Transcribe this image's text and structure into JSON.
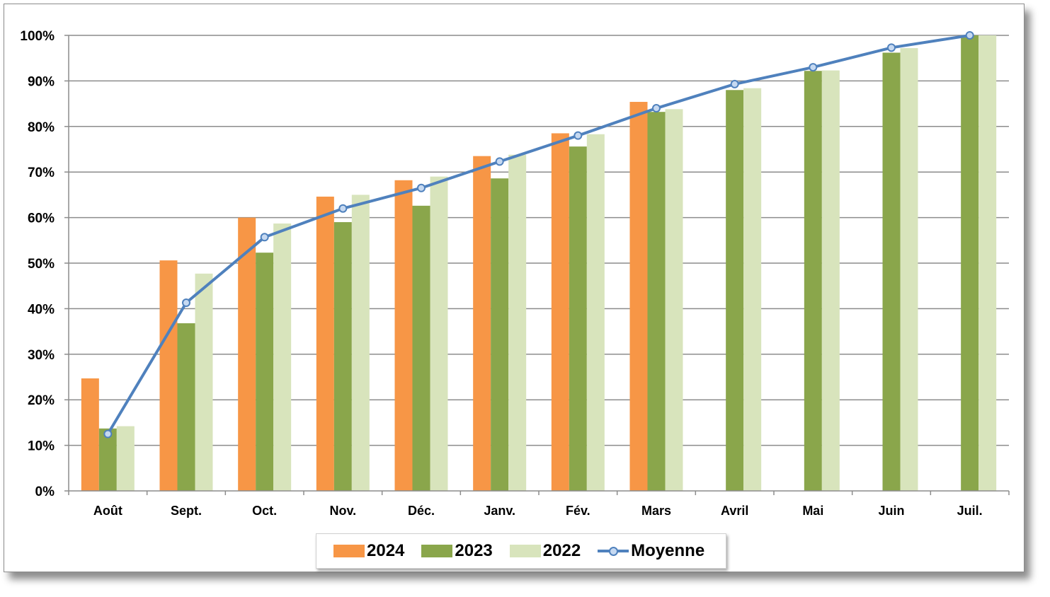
{
  "chart_data": {
    "type": "bar",
    "categories": [
      "Août",
      "Sept.",
      "Oct.",
      "Nov.",
      "Déc.",
      "Janv.",
      "Fév.",
      "Mars",
      "Avril",
      "Mai",
      "Juin",
      "Juil."
    ],
    "series": [
      {
        "name": "2024",
        "kind": "bar",
        "color": "#f79646",
        "values": [
          24.7,
          50.6,
          60.0,
          64.6,
          68.2,
          73.5,
          78.5,
          85.4,
          null,
          null,
          null,
          null
        ]
      },
      {
        "name": "2023",
        "kind": "bar",
        "color": "#8aa64b",
        "values": [
          13.7,
          36.8,
          52.3,
          59.0,
          62.6,
          68.6,
          75.6,
          83.2,
          88.0,
          92.2,
          96.2,
          100.0
        ]
      },
      {
        "name": "2022",
        "kind": "bar",
        "color": "#d8e4bc",
        "values": [
          14.2,
          47.7,
          58.7,
          65.0,
          69.0,
          73.8,
          78.3,
          83.8,
          88.4,
          92.3,
          97.2,
          100.0
        ]
      },
      {
        "name": "Moyenne",
        "kind": "line",
        "color": "#4f81bd",
        "values": [
          12.5,
          41.3,
          55.7,
          62.0,
          66.5,
          72.3,
          78.0,
          84.0,
          89.3,
          93.0,
          97.3,
          100.0
        ]
      }
    ],
    "yticks": [
      "0%",
      "10%",
      "20%",
      "30%",
      "40%",
      "50%",
      "60%",
      "70%",
      "80%",
      "90%",
      "100%"
    ],
    "ylim": [
      0,
      100
    ],
    "grid": true,
    "legend_position": "bottom",
    "title": "",
    "xlabel": "",
    "ylabel": ""
  },
  "legend": {
    "items": [
      {
        "label": "2024",
        "color": "#f79646"
      },
      {
        "label": "2023",
        "color": "#8aa64b"
      },
      {
        "label": "2022",
        "color": "#d8e4bc"
      },
      {
        "label": "Moyenne",
        "color": "#4f81bd"
      }
    ]
  }
}
